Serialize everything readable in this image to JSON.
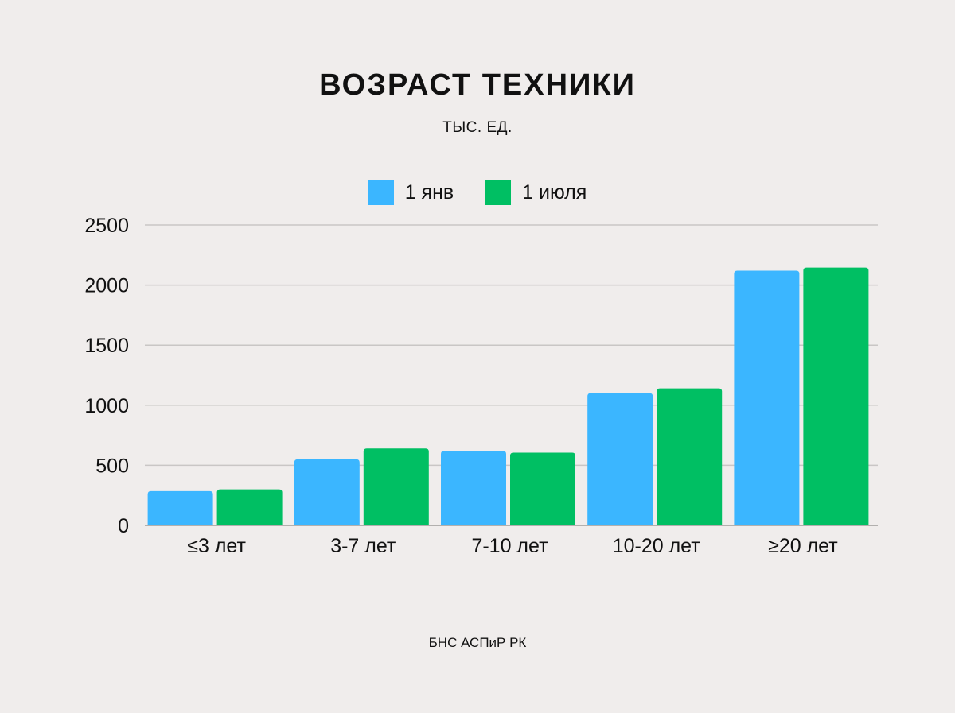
{
  "title": "ВОЗРАСТ ТЕХНИКИ",
  "subtitle": "ТЫС. ЕД.",
  "source": "БНС АСПиР РК",
  "colors": {
    "series1": "#3bb6ff",
    "series2": "#00bf63",
    "grid": "#c9c6c5",
    "background": "#f0edec"
  },
  "chart_data": {
    "type": "bar",
    "title": "ВОЗРАСТ ТЕХНИКИ",
    "subtitle": "ТЫС. ЕД.",
    "categories": [
      "≤3 лет",
      "3-7 лет",
      "7-10 лет",
      "10-20 лет",
      "≥20 лет"
    ],
    "series": [
      {
        "name": "1 янв",
        "color": "#3bb6ff",
        "values": [
          285,
          550,
          620,
          1100,
          2120
        ]
      },
      {
        "name": "1 июля",
        "color": "#00bf63",
        "values": [
          300,
          640,
          605,
          1140,
          2145
        ]
      }
    ],
    "yticks": [
      0,
      500,
      1000,
      1500,
      2000,
      2500
    ],
    "ylim": [
      0,
      2500
    ],
    "grid": true,
    "legend_position": "top-center"
  }
}
